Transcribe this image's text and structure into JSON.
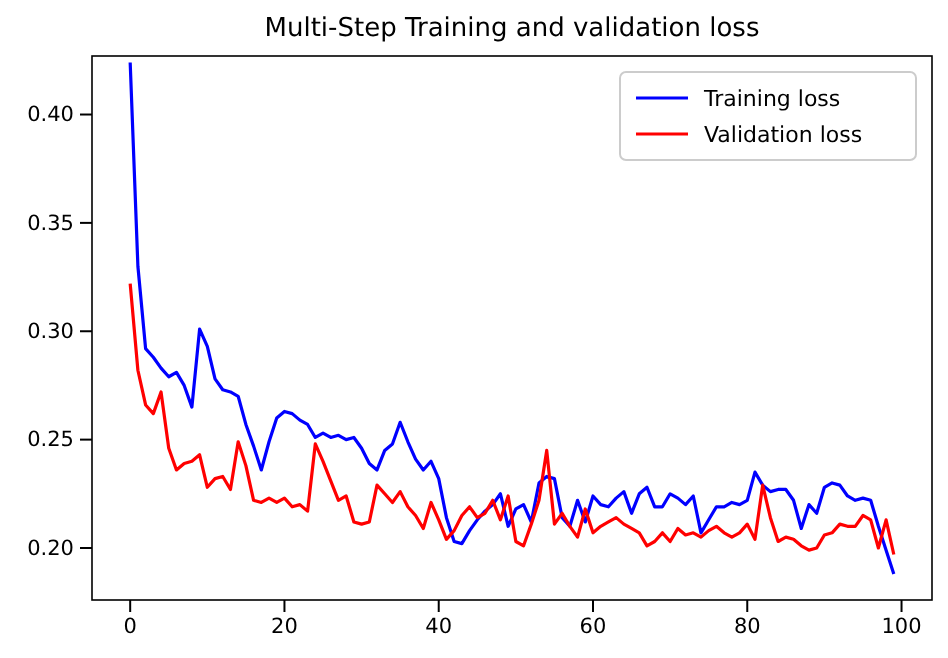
{
  "chart_data": {
    "type": "line",
    "title": "Multi-Step Training and validation loss",
    "x": [
      0,
      1,
      2,
      3,
      4,
      5,
      6,
      7,
      8,
      9,
      10,
      11,
      12,
      13,
      14,
      15,
      16,
      17,
      18,
      19,
      20,
      21,
      22,
      23,
      24,
      25,
      26,
      27,
      28,
      29,
      30,
      31,
      32,
      33,
      34,
      35,
      36,
      37,
      38,
      39,
      40,
      41,
      42,
      43,
      44,
      45,
      46,
      47,
      48,
      49,
      50,
      51,
      52,
      53,
      54,
      55,
      56,
      57,
      58,
      59,
      60,
      61,
      62,
      63,
      64,
      65,
      66,
      67,
      68,
      69,
      70,
      71,
      72,
      73,
      74,
      75,
      76,
      77,
      78,
      79,
      80,
      81,
      82,
      83,
      84,
      85,
      86,
      87,
      88,
      89,
      90,
      91,
      92,
      93,
      94,
      95,
      96,
      97,
      98,
      99
    ],
    "series": [
      {
        "name": "Training loss",
        "color": "#0000ff",
        "values": [
          0.424,
          0.33,
          0.292,
          0.288,
          0.283,
          0.279,
          0.281,
          0.275,
          0.265,
          0.301,
          0.293,
          0.278,
          0.273,
          0.272,
          0.27,
          0.257,
          0.247,
          0.236,
          0.249,
          0.26,
          0.263,
          0.262,
          0.259,
          0.257,
          0.251,
          0.253,
          0.251,
          0.252,
          0.25,
          0.251,
          0.246,
          0.239,
          0.236,
          0.245,
          0.248,
          0.258,
          0.249,
          0.241,
          0.236,
          0.24,
          0.232,
          0.214,
          0.203,
          0.202,
          0.208,
          0.213,
          0.217,
          0.22,
          0.225,
          0.21,
          0.218,
          0.22,
          0.212,
          0.23,
          0.233,
          0.232,
          0.214,
          0.21,
          0.222,
          0.212,
          0.224,
          0.22,
          0.219,
          0.223,
          0.226,
          0.216,
          0.225,
          0.228,
          0.219,
          0.219,
          0.225,
          0.223,
          0.22,
          0.224,
          0.207,
          0.213,
          0.219,
          0.219,
          0.221,
          0.22,
          0.222,
          0.235,
          0.229,
          0.226,
          0.227,
          0.227,
          0.222,
          0.209,
          0.22,
          0.216,
          0.228,
          0.23,
          0.229,
          0.224,
          0.222,
          0.223,
          0.222,
          0.21,
          0.199,
          0.188
        ]
      },
      {
        "name": "Validation loss",
        "color": "#ff0000",
        "values": [
          0.322,
          0.282,
          0.266,
          0.262,
          0.272,
          0.246,
          0.236,
          0.239,
          0.24,
          0.243,
          0.228,
          0.232,
          0.233,
          0.227,
          0.249,
          0.238,
          0.222,
          0.221,
          0.223,
          0.221,
          0.223,
          0.219,
          0.22,
          0.217,
          0.248,
          0.24,
          0.231,
          0.222,
          0.224,
          0.212,
          0.211,
          0.212,
          0.229,
          0.225,
          0.221,
          0.226,
          0.219,
          0.215,
          0.209,
          0.221,
          0.213,
          0.204,
          0.208,
          0.215,
          0.219,
          0.214,
          0.216,
          0.222,
          0.213,
          0.224,
          0.203,
          0.201,
          0.211,
          0.222,
          0.245,
          0.211,
          0.216,
          0.21,
          0.205,
          0.218,
          0.207,
          0.21,
          0.212,
          0.214,
          0.211,
          0.209,
          0.207,
          0.201,
          0.203,
          0.207,
          0.203,
          0.209,
          0.206,
          0.207,
          0.205,
          0.208,
          0.21,
          0.207,
          0.205,
          0.207,
          0.211,
          0.204,
          0.229,
          0.214,
          0.203,
          0.205,
          0.204,
          0.201,
          0.199,
          0.2,
          0.206,
          0.207,
          0.211,
          0.21,
          0.21,
          0.215,
          0.213,
          0.2,
          0.213,
          0.197
        ]
      }
    ],
    "xlim": [
      -4.95,
      103.95
    ],
    "xticks": [
      0,
      20,
      40,
      60,
      80,
      100
    ],
    "ylim": [
      0.176,
      0.427
    ],
    "yticks": [
      {
        "value": 0.2,
        "label": "0.20"
      },
      {
        "value": 0.25,
        "label": "0.25"
      },
      {
        "value": 0.3,
        "label": "0.30"
      },
      {
        "value": 0.35,
        "label": "0.35"
      },
      {
        "value": 0.4,
        "label": "0.40"
      }
    ],
    "legend": "top right",
    "grid": false,
    "marker": "none",
    "line_style": "solid"
  }
}
